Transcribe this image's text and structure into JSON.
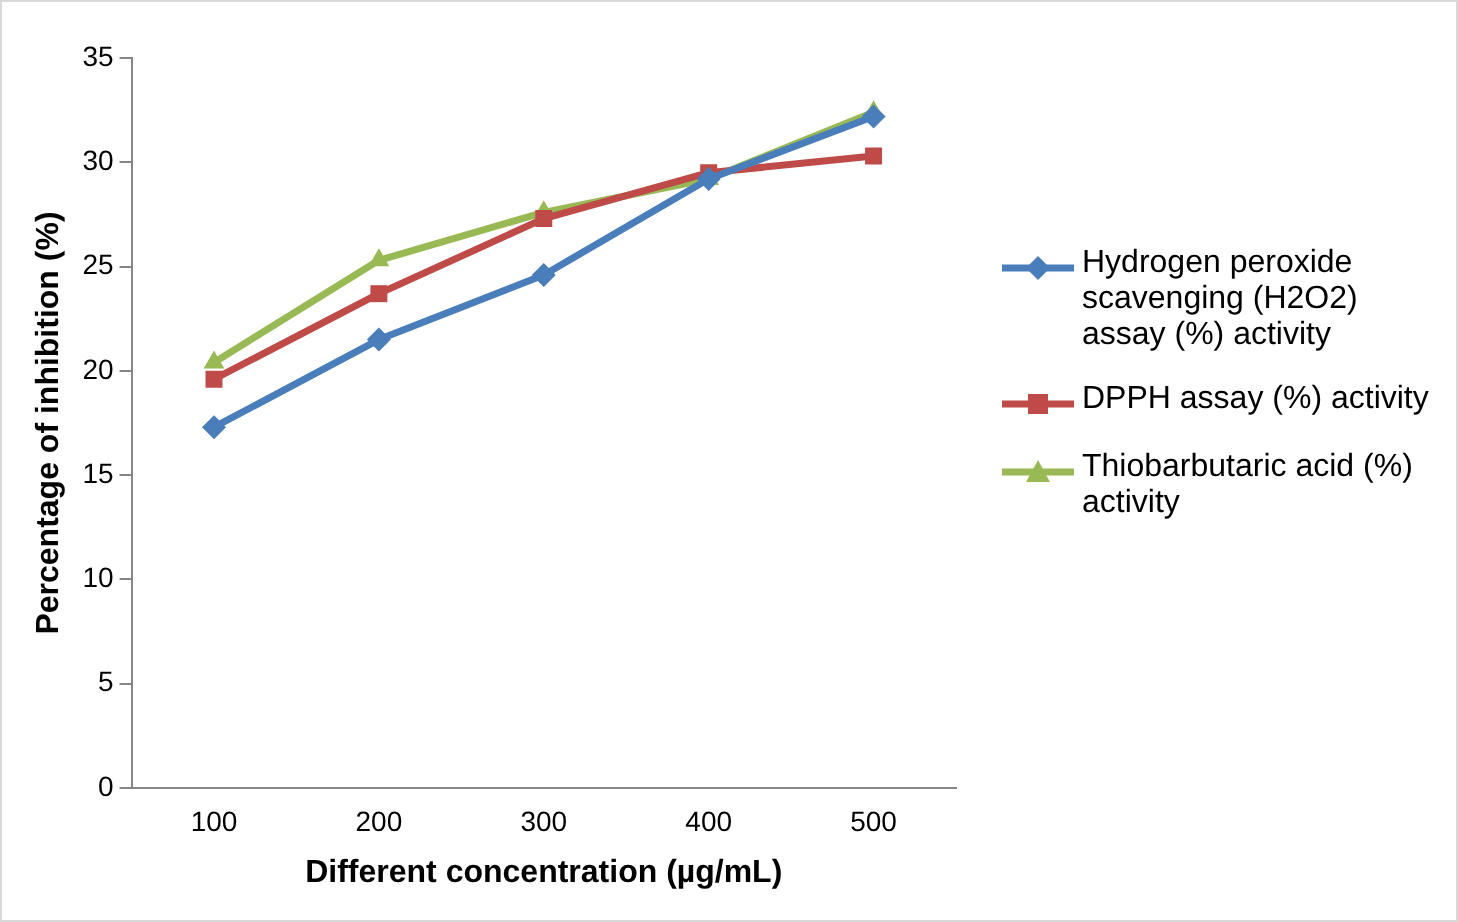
{
  "chart_data": {
    "type": "line",
    "xlabel": "Different concentration (µg/mL)",
    "ylabel": "Percentage of inhibition (%)",
    "categories": [
      "100",
      "200",
      "300",
      "400",
      "500"
    ],
    "ylim": [
      0,
      35
    ],
    "yticks": [
      0,
      5,
      10,
      15,
      20,
      25,
      30,
      35
    ],
    "grid": false,
    "legend": "right",
    "line_style": "solid",
    "series": [
      {
        "name": "Hydrogen peroxide scavenging (H2O2) assay (%) activity",
        "color": "#4a7ebb",
        "marker": "diamond",
        "values": [
          17.3,
          21.5,
          24.6,
          29.2,
          32.2
        ]
      },
      {
        "name": "DPPH assay (%) activity",
        "color": "#be4b48",
        "marker": "square",
        "values": [
          19.6,
          23.7,
          27.3,
          29.5,
          30.3
        ]
      },
      {
        "name": "Thiobarbutaric acid (%) activity",
        "color": "#98b954",
        "marker": "triangle",
        "values": [
          20.4,
          25.3,
          27.6,
          29.2,
          32.4
        ]
      }
    ]
  }
}
